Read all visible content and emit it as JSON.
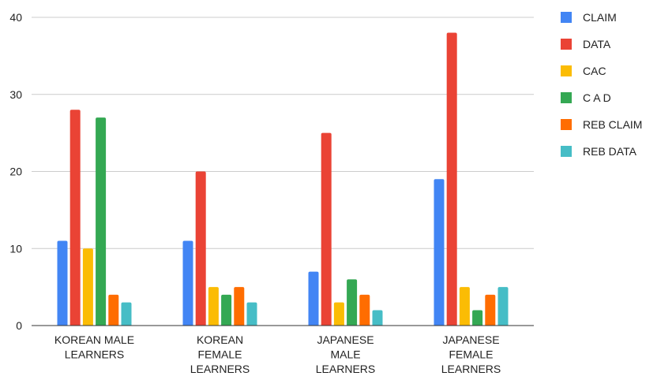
{
  "chart_data": {
    "type": "bar",
    "categories": [
      [
        "KOREAN MALE",
        "LEARNERS"
      ],
      [
        "KOREAN",
        "FEMALE",
        "LEARNERS"
      ],
      [
        "JAPANESE",
        "MALE",
        "LEARNERS"
      ],
      [
        "JAPANESE",
        "FEMALE",
        "LEARNERS"
      ]
    ],
    "series": [
      {
        "name": "CLAIM",
        "color": "#4285f4",
        "values": [
          11,
          11,
          7,
          19
        ]
      },
      {
        "name": "DATA",
        "color": "#ea4335",
        "values": [
          28,
          20,
          25,
          38
        ]
      },
      {
        "name": "CAC",
        "color": "#fbbc04",
        "values": [
          10,
          5,
          3,
          5
        ]
      },
      {
        "name": "C A D",
        "color": "#34a853",
        "values": [
          27,
          4,
          6,
          2
        ]
      },
      {
        "name": "REB CLAIM",
        "color": "#ff6d01",
        "values": [
          4,
          5,
          4,
          4
        ]
      },
      {
        "name": "REB DATA",
        "color": "#46bdc6",
        "values": [
          3,
          3,
          2,
          5
        ]
      }
    ],
    "ylim": [
      0,
      40
    ],
    "yticks": [
      0,
      10,
      20,
      30,
      40
    ],
    "grid": true,
    "legend": "right"
  }
}
